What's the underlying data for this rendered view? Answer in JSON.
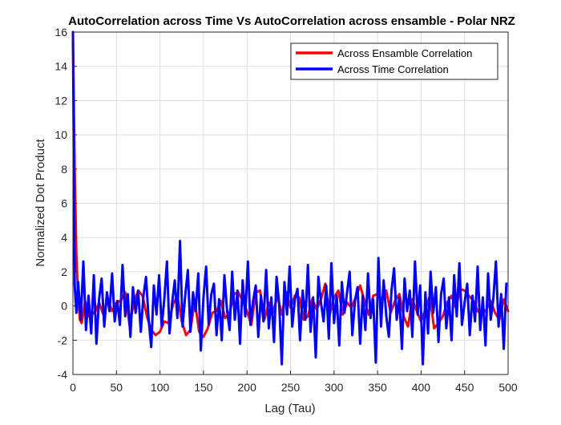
{
  "chart_data": {
    "type": "line",
    "title": "AutoCorrelation across Time Vs AutoCorrelation across ensamble - Polar NRZ",
    "xlabel": "Lag (Tau)",
    "ylabel": "Normalized Dot Product",
    "xlim": [
      0,
      500
    ],
    "ylim": [
      -4,
      16
    ],
    "xticks": [
      0,
      50,
      100,
      150,
      200,
      250,
      300,
      350,
      400,
      450,
      500
    ],
    "yticks": [
      -4,
      -2,
      0,
      2,
      4,
      6,
      8,
      10,
      12,
      14,
      16
    ],
    "grid": true,
    "legend_position": "top-right",
    "series": [
      {
        "name": "Across Ensamble Correlation",
        "color": "#ff0000",
        "x": [
          0,
          2,
          4,
          6,
          8,
          10,
          14,
          18,
          22,
          26,
          30,
          35,
          40,
          45,
          50,
          55,
          60,
          65,
          70,
          75,
          80,
          85,
          90,
          95,
          100,
          105,
          110,
          115,
          120,
          125,
          130,
          135,
          140,
          145,
          150,
          155,
          160,
          165,
          170,
          175,
          180,
          185,
          190,
          195,
          200,
          205,
          210,
          215,
          220,
          225,
          230,
          235,
          240,
          245,
          250,
          255,
          260,
          265,
          270,
          275,
          280,
          285,
          290,
          295,
          300,
          305,
          310,
          315,
          320,
          325,
          330,
          335,
          340,
          345,
          350,
          355,
          360,
          365,
          370,
          375,
          380,
          385,
          390,
          395,
          400,
          405,
          410,
          415,
          420,
          425,
          430,
          435,
          440,
          445,
          450,
          455,
          460,
          465,
          470,
          475,
          480,
          485,
          490,
          495,
          500
        ],
        "values": [
          16,
          8,
          3,
          0.5,
          -0.8,
          -1,
          0.3,
          -0.6,
          -0.5,
          -0.3,
          0.2,
          -0.5,
          0.4,
          -0.3,
          0.2,
          0.3,
          0.8,
          -1.1,
          0.2,
          0.9,
          0.6,
          -0.6,
          -1.4,
          -1.7,
          -1.5,
          -0.9,
          -1.0,
          0.1,
          0.6,
          -0.9,
          -1.7,
          -1.4,
          0.3,
          -1.5,
          -1.8,
          -1.3,
          -0.4,
          -0.3,
          0.3,
          -0.7,
          -0.4,
          0.7,
          0.8,
          0.3,
          -0.3,
          -1.1,
          0.8,
          0.9,
          -0.8,
          0.2,
          -0.4,
          0.6,
          -0.5,
          0.8,
          -0.1,
          0.6,
          0.5,
          -0.8,
          -0.6,
          0.4,
          -0.2,
          0.4,
          1.3,
          -0.5,
          0.5,
          0.9,
          -0.5,
          0.2,
          -0.1,
          0.5,
          1.2,
          0.3,
          -0.5,
          0.6,
          0.7,
          0.4,
          0.9,
          -0.4,
          0.3,
          0.7,
          -0.6,
          -1.2,
          0.4,
          -0.3,
          -0.9,
          -0.2,
          0.6,
          -1.3,
          -1.0,
          -0.6,
          0.2,
          0.6,
          -0.1,
          1.0,
          0.9,
          0.6,
          0.3,
          -0.3,
          -0.5,
          -0.2,
          0.3,
          -0.4,
          -0.8,
          0.4,
          -0.3
        ]
      },
      {
        "name": "Across Time Correlation",
        "color": "#0000ff",
        "x": [
          0,
          2,
          4,
          6,
          9,
          12,
          15,
          18,
          21,
          24,
          27,
          30,
          33,
          36,
          39,
          42,
          45,
          48,
          51,
          54,
          57,
          60,
          63,
          66,
          69,
          72,
          75,
          78,
          81,
          84,
          87,
          90,
          93,
          96,
          99,
          102,
          105,
          108,
          111,
          114,
          117,
          120,
          123,
          126,
          129,
          132,
          135,
          138,
          141,
          144,
          147,
          150,
          153,
          156,
          159,
          162,
          165,
          168,
          171,
          174,
          177,
          180,
          183,
          186,
          189,
          192,
          195,
          198,
          201,
          204,
          207,
          210,
          213,
          216,
          219,
          222,
          225,
          228,
          231,
          234,
          237,
          240,
          243,
          246,
          249,
          252,
          255,
          258,
          261,
          264,
          267,
          270,
          273,
          276,
          279,
          282,
          285,
          288,
          291,
          294,
          297,
          300,
          303,
          306,
          309,
          312,
          315,
          318,
          321,
          324,
          327,
          330,
          333,
          336,
          339,
          342,
          345,
          348,
          351,
          354,
          357,
          360,
          363,
          366,
          369,
          372,
          375,
          378,
          381,
          384,
          387,
          390,
          393,
          396,
          399,
          402,
          405,
          408,
          411,
          414,
          417,
          420,
          423,
          426,
          429,
          432,
          435,
          438,
          441,
          444,
          447,
          450,
          453,
          456,
          459,
          462,
          465,
          468,
          471,
          474,
          477,
          480,
          483,
          486,
          489,
          492,
          495,
          498
        ],
        "values": [
          16,
          1.2,
          -0.4,
          1.4,
          -0.8,
          2.6,
          -1.4,
          0.6,
          -1.6,
          1.8,
          -2.2,
          0.4,
          1.6,
          -1.2,
          0.8,
          -0.3,
          1.9,
          -0.9,
          0.3,
          -1.1,
          2.4,
          -0.6,
          0.7,
          -1.8,
          1.1,
          -0.4,
          0.9,
          -1.5,
          0.6,
          1.7,
          -0.8,
          -2.4,
          1.2,
          -0.5,
          1.8,
          -1.2,
          0.4,
          2.6,
          -1.6,
          0.2,
          1.5,
          -0.7,
          3.8,
          -1.2,
          0.6,
          2.1,
          -1.5,
          0.8,
          -0.3,
          1.9,
          -2.6,
          0.5,
          2.3,
          -1.1,
          0.7,
          1.3,
          -1.7,
          0.4,
          -2.0,
          1.8,
          -0.2,
          -1.4,
          2.0,
          -0.8,
          0.9,
          -2.2,
          1.5,
          -0.6,
          2.6,
          -1.1,
          0.3,
          1.2,
          -1.8,
          0.6,
          -0.9,
          2.1,
          -1.3,
          0.5,
          -2.1,
          1.7,
          0.1,
          -3.4,
          1.4,
          -0.5,
          2.3,
          -1.2,
          0.4,
          1.0,
          -2.0,
          0.9,
          -0.8,
          2.4,
          -1.5,
          0.5,
          -3.0,
          1.7,
          0.2,
          -0.9,
          1.2,
          -1.9,
          2.5,
          -1.0,
          0.6,
          -2.3,
          1.4,
          -0.4,
          0.8,
          2.0,
          -1.7,
          0.3,
          1.1,
          -2.2,
          0.6,
          -1.4,
          1.9,
          -0.7,
          0.4,
          -3.3,
          2.8,
          -1.2,
          1.5,
          -0.6,
          -1.8,
          0.9,
          2.2,
          -0.8,
          0.5,
          -2.5,
          1.6,
          -0.3,
          0.9,
          -1.8,
          2.6,
          -0.5,
          1.2,
          -3.4,
          0.8,
          -1.6,
          2.0,
          -0.4,
          1.1,
          -2.1,
          0.7,
          1.6,
          -1.3,
          0.5,
          -2.0,
          1.8,
          -0.6,
          2.5,
          -1.1,
          0.2,
          1.3,
          -1.7,
          0.6,
          -0.9,
          2.3,
          -1.4,
          0.5,
          -2.3,
          1.9,
          -0.8,
          0.4,
          2.6,
          -1.2,
          0.7,
          -2.5,
          1.3
        ]
      }
    ]
  }
}
